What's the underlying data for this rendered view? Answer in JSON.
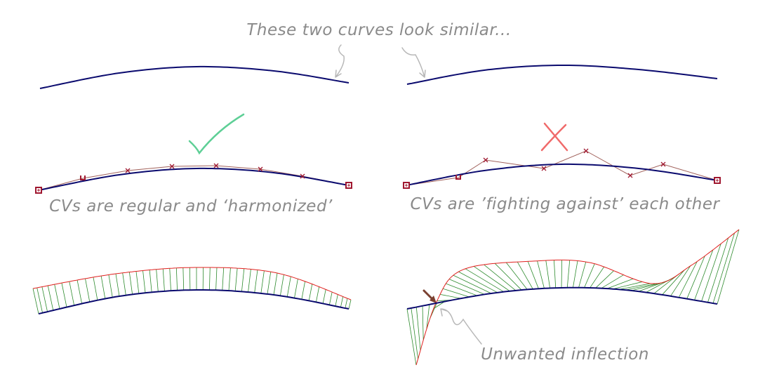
{
  "title": "These two curves look similar...",
  "captions": {
    "left_middle": "CVs are regular and ‘harmonized’",
    "right_middle": "CVs are ’fighting against’ each other",
    "inflection": "Unwanted inflection"
  },
  "marks": {
    "good": "check-icon",
    "bad": "cross-icon"
  },
  "colors": {
    "curve": "#0a0a6e",
    "hull": "#a0605a",
    "cv": "#a01830",
    "comb_tooth": "#2e8b2e",
    "comb_envelope": "#e0201e",
    "check": "#5ecf96",
    "cross": "#f06a6a",
    "annotation": "#8a8a8a",
    "pointer": "#7a4030"
  }
}
